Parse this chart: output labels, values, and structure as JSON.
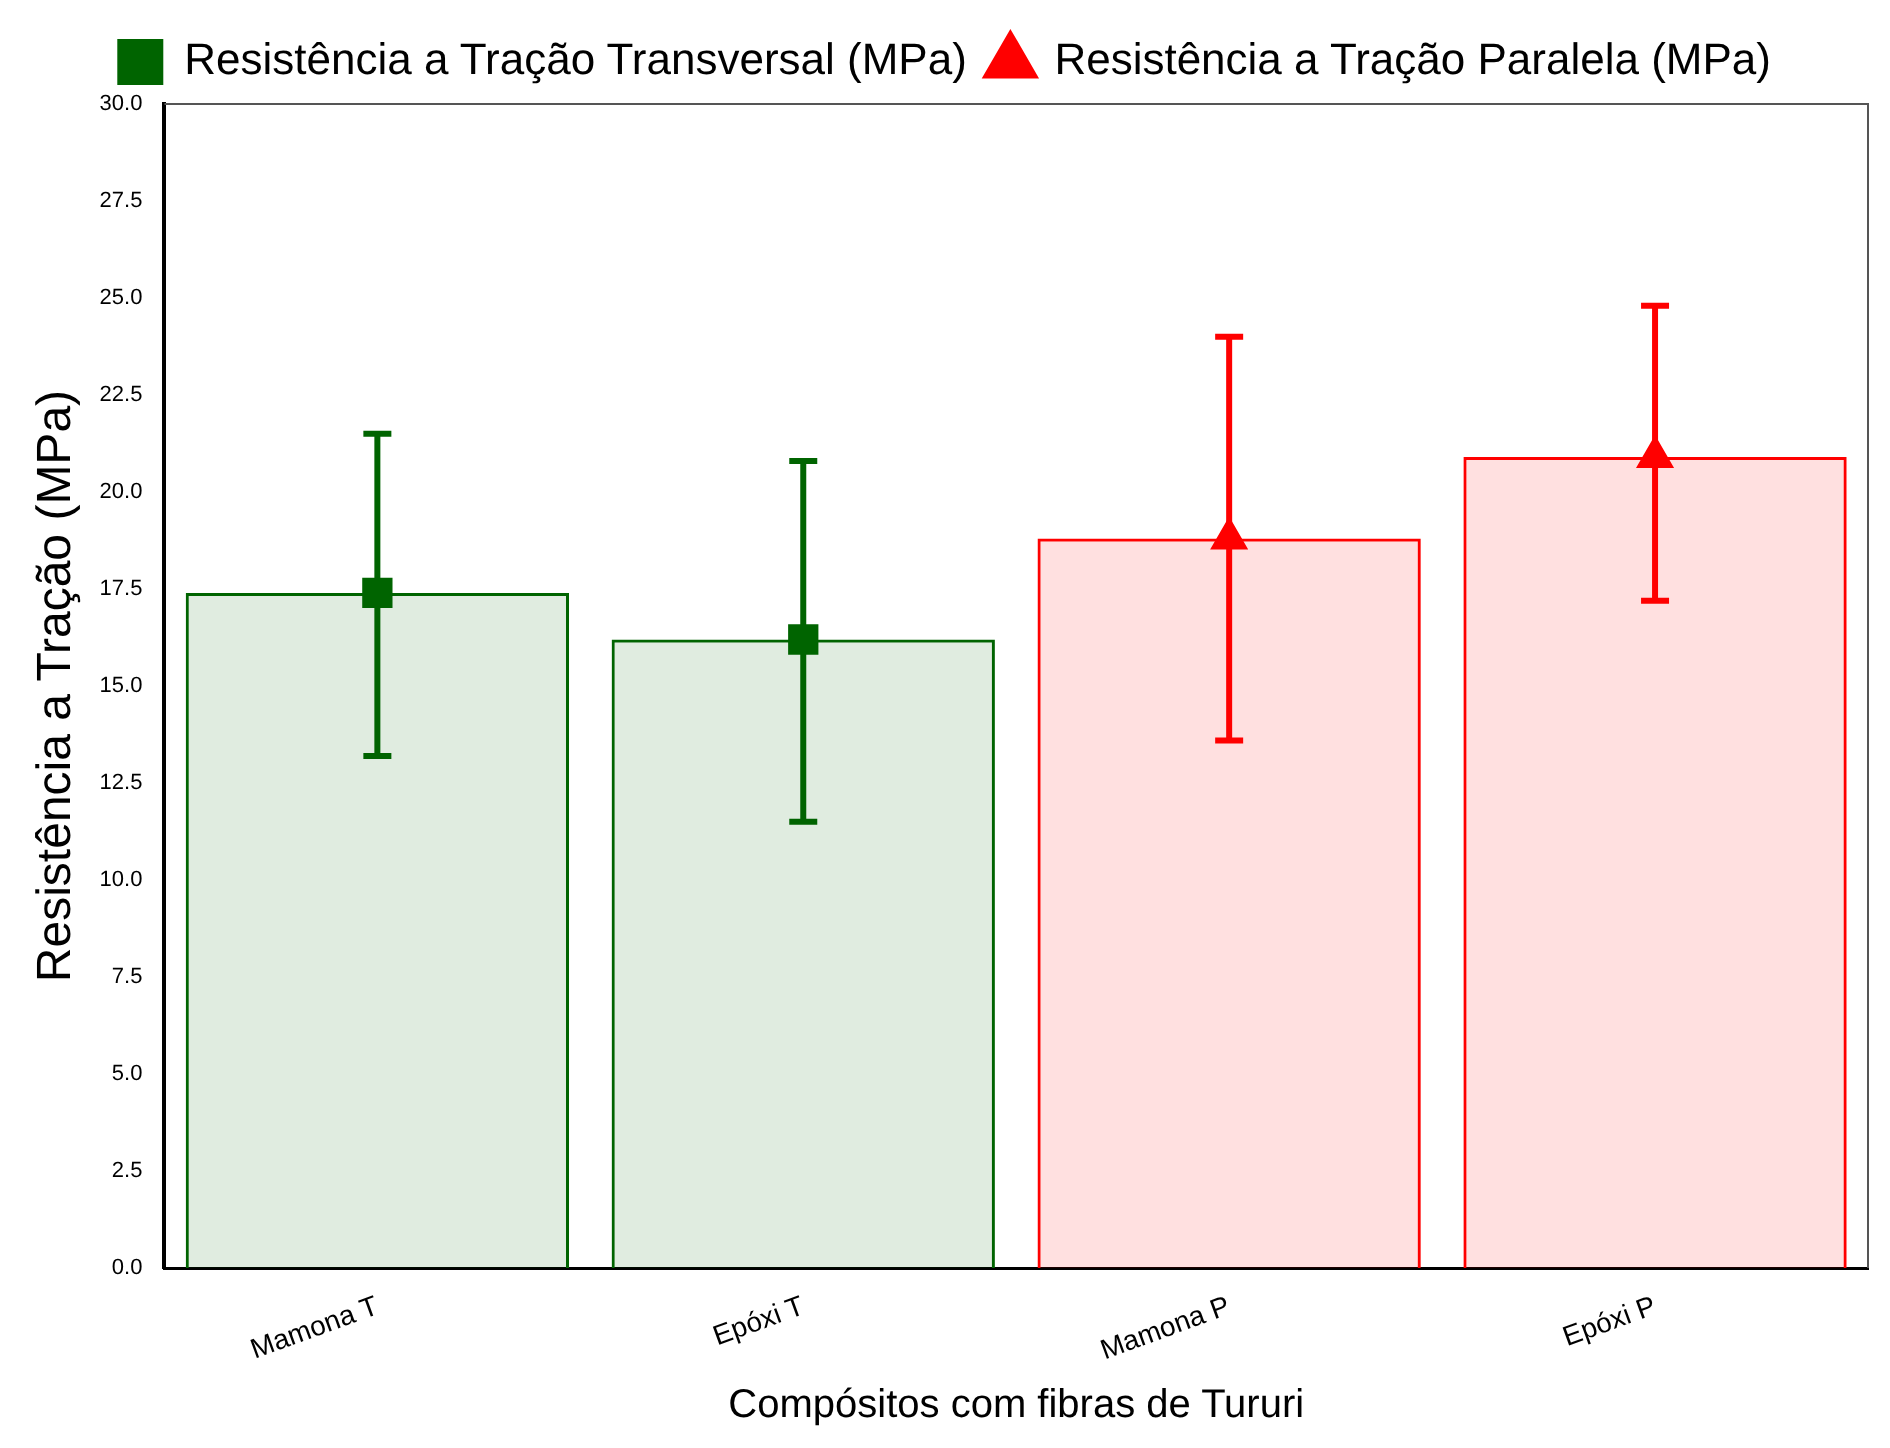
{
  "chart_data": {
    "type": "bar",
    "xlabel": "Compósitos com fibras de Tururi",
    "ylabel": "Resistência a Tração (MPa)",
    "categories": [
      "Mamona T",
      "Epóxi T",
      "Mamona P",
      "Epóxi P"
    ],
    "series": [
      {
        "color": "#006400",
        "values": [
          17.4,
          16.2,
          null,
          null
        ]
      },
      {
        "color": "#ff0000",
        "values": [
          null,
          null,
          18.8,
          20.9
        ]
      },
      {
        "type": "scatter",
        "name": "Resistência a Tração Transversal (MPa)",
        "color": "#006400",
        "marker": "square",
        "x": [
          "Mamona T",
          "Epóxi T"
        ],
        "values": [
          17.4,
          16.2
        ],
        "errors": [
          [
            13.2,
            21.5
          ],
          [
            11.5,
            20.8
          ]
        ]
      },
      {
        "type": "scatter",
        "name": "Resistência a Tração Paralela (MPa)",
        "color": "#ff0000",
        "marker": "triangle",
        "x": [
          "Mamona P",
          "Epóxi P"
        ],
        "values": [
          18.8,
          20.9
        ],
        "errors": [
          [
            13.6,
            24.0
          ],
          [
            17.2,
            24.8
          ]
        ]
      }
    ],
    "ylim": [
      0,
      30
    ],
    "yticks": [
      {
        "value": 0,
        "label": "0.0"
      },
      {
        "value": 2.5,
        "label": "2.5"
      },
      {
        "value": 5,
        "label": "5.0"
      },
      {
        "value": 7.5,
        "label": "7.5"
      },
      {
        "value": 10,
        "label": "10.0"
      },
      {
        "value": 12.5,
        "label": "12.5"
      },
      {
        "value": 15,
        "label": "15.0"
      },
      {
        "value": 17.5,
        "label": "17.5"
      },
      {
        "value": 20,
        "label": "20.0"
      },
      {
        "value": 22.5,
        "label": "22.5"
      },
      {
        "value": 25,
        "label": "25.0"
      },
      {
        "value": 27.5,
        "label": "27.5"
      },
      {
        "value": 30,
        "label": "30.0"
      }
    ],
    "grid": false,
    "legend": "top"
  }
}
